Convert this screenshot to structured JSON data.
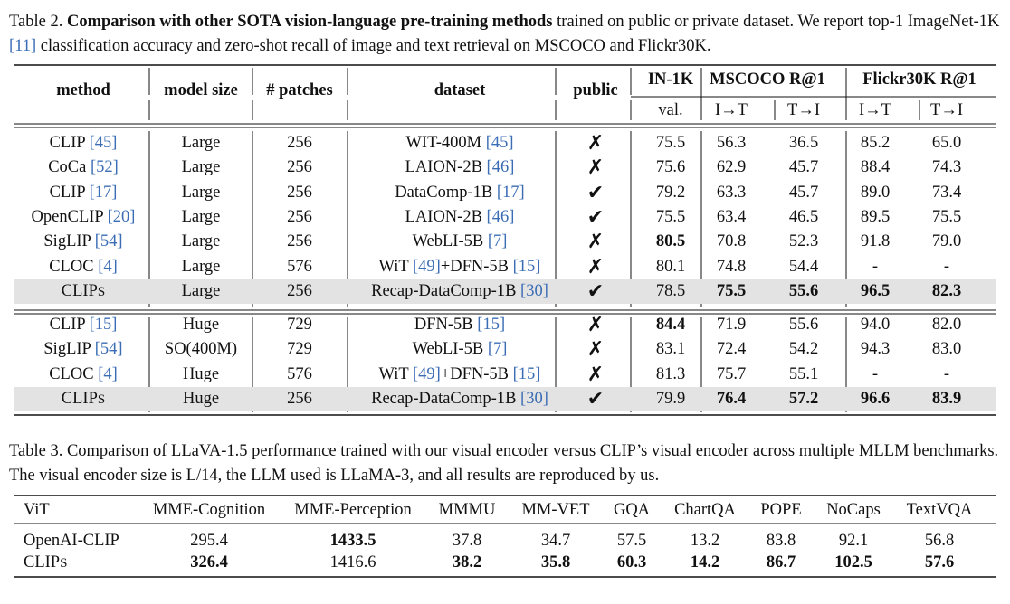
{
  "table2": {
    "caption_label": "Table 2.",
    "caption_title": "Comparison with other SOTA vision-language pre-training methods",
    "caption_rest": "trained on public or private dataset. We report top-1 ImageNet-1K [11] classification accuracy and zero-shot recall of image and text retrieval on MSCOCO and Flickr30K.",
    "headers": {
      "method": "method",
      "model_size": "model size",
      "patches": "# patches",
      "dataset": "dataset",
      "public": "public",
      "in1k": "IN-1K",
      "mscoco": "MSCOCO R@1",
      "flickr": "Flickr30K R@1",
      "val": "val.",
      "i2t": "I→T",
      "t2i": "T→I"
    },
    "groups": [
      [
        {
          "method": "CLIP",
          "method_ref": "[45]",
          "size": "Large",
          "patches": "256",
          "dataset": "WIT-400M",
          "dataset_ref": "[45]",
          "public": "✗",
          "in1k": "75.5",
          "coco_i2t": "56.3",
          "coco_t2i": "36.5",
          "flickr_i2t": "85.2",
          "flickr_t2i": "65.0"
        },
        {
          "method": "CoCa",
          "method_ref": "[52]",
          "size": "Large",
          "patches": "256",
          "dataset": "LAION-2B",
          "dataset_ref": "[46]",
          "public": "✗",
          "in1k": "75.6",
          "coco_i2t": "62.9",
          "coco_t2i": "45.7",
          "flickr_i2t": "88.4",
          "flickr_t2i": "74.3"
        },
        {
          "method": "CLIP",
          "method_ref": "[17]",
          "size": "Large",
          "patches": "256",
          "dataset": "DataComp-1B",
          "dataset_ref": "[17]",
          "public": "✔",
          "in1k": "79.2",
          "coco_i2t": "63.3",
          "coco_t2i": "45.7",
          "flickr_i2t": "89.0",
          "flickr_t2i": "73.4"
        },
        {
          "method": "OpenCLIP",
          "method_ref": "[20]",
          "size": "Large",
          "patches": "256",
          "dataset": "LAION-2B",
          "dataset_ref": "[46]",
          "public": "✔",
          "in1k": "75.5",
          "coco_i2t": "63.4",
          "coco_t2i": "46.5",
          "flickr_i2t": "89.5",
          "flickr_t2i": "75.5"
        },
        {
          "method": "SigLIP",
          "method_ref": "[54]",
          "size": "Large",
          "patches": "256",
          "dataset": "WebLI-5B",
          "dataset_ref": "[7]",
          "public": "✗",
          "in1k": "80.5",
          "coco_i2t": "70.8",
          "coco_t2i": "52.3",
          "flickr_i2t": "91.8",
          "flickr_t2i": "79.0"
        },
        {
          "method": "CLOC",
          "method_ref": "[4]",
          "size": "Large",
          "patches": "576",
          "dataset": "WiT [49]+DFN-5B",
          "dataset_ref": "[15]",
          "public": "✗",
          "in1k": "80.1",
          "coco_i2t": "74.8",
          "coco_t2i": "54.4",
          "flickr_i2t": "-",
          "flickr_t2i": "-"
        },
        {
          "method": "CLIPS",
          "method_ref": "",
          "size": "Large",
          "patches": "256",
          "dataset": "Recap-DataComp-1B",
          "dataset_ref": "[30]",
          "public": "✔",
          "in1k": "78.5",
          "coco_i2t": "75.5",
          "coco_t2i": "55.6",
          "flickr_i2t": "96.5",
          "flickr_t2i": "82.3"
        }
      ],
      [
        {
          "method": "CLIP",
          "method_ref": "[15]",
          "size": "Huge",
          "patches": "729",
          "dataset": "DFN-5B",
          "dataset_ref": "[15]",
          "public": "✗",
          "in1k": "84.4",
          "coco_i2t": "71.9",
          "coco_t2i": "55.6",
          "flickr_i2t": "94.0",
          "flickr_t2i": "82.0"
        },
        {
          "method": "SigLIP",
          "method_ref": "[54]",
          "size": "SO(400M)",
          "patches": "729",
          "dataset": "WebLI-5B",
          "dataset_ref": "[7]",
          "public": "✗",
          "in1k": "83.1",
          "coco_i2t": "72.4",
          "coco_t2i": "54.2",
          "flickr_i2t": "94.3",
          "flickr_t2i": "83.0"
        },
        {
          "method": "CLOC",
          "method_ref": "[4]",
          "size": "Huge",
          "patches": "576",
          "dataset": "WiT [49]+DFN-5B",
          "dataset_ref": "[15]",
          "public": "✗",
          "in1k": "81.3",
          "coco_i2t": "75.7",
          "coco_t2i": "55.1",
          "flickr_i2t": "-",
          "flickr_t2i": "-"
        },
        {
          "method": "CLIPS",
          "method_ref": "",
          "size": "Huge",
          "patches": "256",
          "dataset": "Recap-DataComp-1B",
          "dataset_ref": "[30]",
          "public": "✔",
          "in1k": "79.9",
          "coco_i2t": "76.4",
          "coco_t2i": "57.2",
          "flickr_i2t": "96.6",
          "flickr_t2i": "83.9"
        }
      ]
    ]
  },
  "table3": {
    "caption": "Table 3. Comparison of LLaVA-1.5 performance trained with our visual encoder versus CLIP’s visual encoder across multiple MLLM benchmarks. The visual encoder size is L/14, the LLM used is LLaMA-3, and all results are reproduced by us.",
    "headers": [
      "ViT",
      "MME-Cognition",
      "MME-Perception",
      "MMMU",
      "MM-VET",
      "GQA",
      "ChartQA",
      "POPE",
      "NoCaps",
      "TextVQA"
    ],
    "rows": [
      {
        "name": "OpenAI-CLIP",
        "values": [
          "295.4",
          "1433.5",
          "37.8",
          "34.7",
          "57.5",
          "13.2",
          "83.8",
          "92.1",
          "56.8"
        ]
      },
      {
        "name": "CLIPS",
        "values": [
          "326.4",
          "1416.6",
          "38.2",
          "35.8",
          "60.3",
          "14.2",
          "86.7",
          "102.5",
          "57.6"
        ]
      }
    ]
  }
}
